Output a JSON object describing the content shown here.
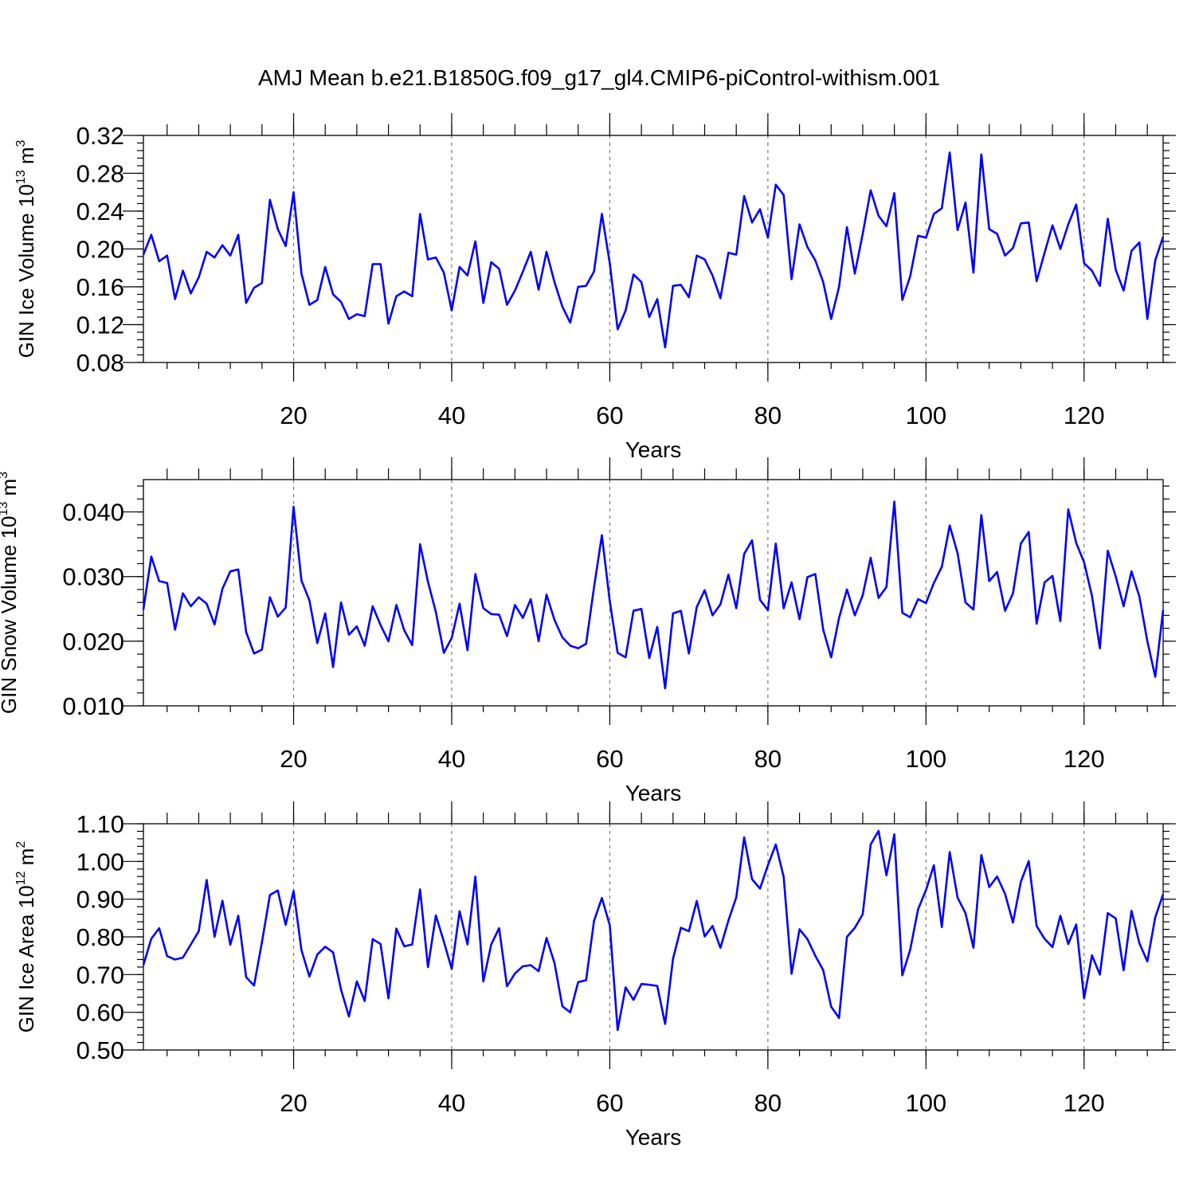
{
  "figure": {
    "title": "AMJ Mean b.e21.B1850G.f09_g17_gl4.CMIP6-piControl-withism.001",
    "line_color": "#0000ff"
  },
  "chart_data": [
    {
      "type": "line",
      "ylabel": "GIN Ice Volume 10",
      "ylabel_sup": "13",
      "ylabel_unit": "m",
      "ylabel_unit_sup": "3",
      "xlabel": "Years",
      "xlim": [
        1,
        130
      ],
      "ylim": [
        0.08,
        0.32
      ],
      "yticks": [
        0.08,
        0.12,
        0.16,
        0.2,
        0.24,
        0.28,
        0.32
      ],
      "ytick_labels": [
        "0.08",
        "0.12",
        "0.16",
        "0.20",
        "0.24",
        "0.28",
        "0.32"
      ],
      "xticks": [
        20,
        40,
        60,
        80,
        100,
        120
      ],
      "xtick_labels": [
        "20",
        "40",
        "60",
        "80",
        "100",
        "120"
      ],
      "x_start": 1,
      "values": [
        0.194,
        0.215,
        0.187,
        0.193,
        0.147,
        0.177,
        0.153,
        0.17,
        0.197,
        0.191,
        0.204,
        0.193,
        0.215,
        0.143,
        0.159,
        0.164,
        0.252,
        0.221,
        0.203,
        0.26,
        0.174,
        0.141,
        0.146,
        0.181,
        0.152,
        0.144,
        0.126,
        0.131,
        0.129,
        0.184,
        0.184,
        0.121,
        0.15,
        0.155,
        0.15,
        0.237,
        0.189,
        0.191,
        0.175,
        0.135,
        0.181,
        0.172,
        0.208,
        0.143,
        0.186,
        0.179,
        0.141,
        0.156,
        0.176,
        0.197,
        0.157,
        0.197,
        0.165,
        0.139,
        0.122,
        0.16,
        0.161,
        0.176,
        0.237,
        0.185,
        0.115,
        0.135,
        0.173,
        0.165,
        0.128,
        0.147,
        0.096,
        0.161,
        0.162,
        0.149,
        0.193,
        0.189,
        0.172,
        0.148,
        0.196,
        0.194,
        0.256,
        0.228,
        0.242,
        0.212,
        0.268,
        0.257,
        0.168,
        0.226,
        0.202,
        0.188,
        0.165,
        0.126,
        0.16,
        0.223,
        0.174,
        0.216,
        0.262,
        0.235,
        0.224,
        0.259,
        0.146,
        0.171,
        0.214,
        0.212,
        0.237,
        0.243,
        0.302,
        0.22,
        0.249,
        0.175,
        0.3,
        0.221,
        0.216,
        0.193,
        0.201,
        0.227,
        0.228,
        0.166,
        0.196,
        0.225,
        0.2,
        0.226,
        0.247,
        0.185,
        0.177,
        0.161,
        0.232,
        0.178,
        0.156,
        0.198,
        0.207,
        0.126,
        0.188,
        0.213
      ]
    },
    {
      "type": "line",
      "ylabel": "GIN Snow Volume 10",
      "ylabel_sup": "13",
      "ylabel_unit": "m",
      "ylabel_unit_sup": "3",
      "xlabel": "Years",
      "xlim": [
        1,
        130
      ],
      "ylim": [
        0.01,
        0.045
      ],
      "yticks": [
        0.01,
        0.02,
        0.03,
        0.04
      ],
      "ytick_labels": [
        "0.010",
        "0.020",
        "0.030",
        "0.040"
      ],
      "xticks": [
        20,
        40,
        60,
        80,
        100,
        120
      ],
      "xtick_labels": [
        "20",
        "40",
        "60",
        "80",
        "100",
        "120"
      ],
      "x_start": 1,
      "values": [
        0.0249,
        0.0331,
        0.0293,
        0.029,
        0.0218,
        0.0274,
        0.0254,
        0.0268,
        0.0258,
        0.0226,
        0.0281,
        0.0308,
        0.0311,
        0.0214,
        0.0181,
        0.0187,
        0.0268,
        0.0238,
        0.0252,
        0.0408,
        0.0294,
        0.0263,
        0.0197,
        0.0243,
        0.016,
        0.026,
        0.021,
        0.0223,
        0.0193,
        0.0254,
        0.0225,
        0.02,
        0.0256,
        0.0217,
        0.0194,
        0.035,
        0.0292,
        0.0245,
        0.0182,
        0.0205,
        0.0258,
        0.0186,
        0.0304,
        0.0251,
        0.0242,
        0.0241,
        0.0208,
        0.0256,
        0.0236,
        0.0265,
        0.02,
        0.0272,
        0.0233,
        0.0206,
        0.0193,
        0.0189,
        0.0196,
        0.0283,
        0.0364,
        0.0262,
        0.0182,
        0.0175,
        0.0247,
        0.025,
        0.0174,
        0.0222,
        0.0127,
        0.0243,
        0.0247,
        0.0181,
        0.0253,
        0.0279,
        0.024,
        0.0257,
        0.0303,
        0.0251,
        0.0335,
        0.0356,
        0.0264,
        0.0248,
        0.0351,
        0.0251,
        0.0291,
        0.0234,
        0.0299,
        0.0304,
        0.0218,
        0.0175,
        0.0236,
        0.028,
        0.024,
        0.0271,
        0.0329,
        0.0267,
        0.0284,
        0.0416,
        0.0244,
        0.0237,
        0.0265,
        0.0259,
        0.029,
        0.0315,
        0.0379,
        0.0336,
        0.026,
        0.0249,
        0.0395,
        0.0293,
        0.0307,
        0.0247,
        0.0274,
        0.0351,
        0.0369,
        0.0227,
        0.0291,
        0.0301,
        0.0231,
        0.0404,
        0.0352,
        0.0322,
        0.027,
        0.0189,
        0.034,
        0.03,
        0.0254,
        0.0308,
        0.0269,
        0.02,
        0.0145,
        0.0248
      ]
    },
    {
      "type": "line",
      "ylabel": "GIN Ice Area 10",
      "ylabel_sup": "12",
      "ylabel_unit": "m",
      "ylabel_unit_sup": "2",
      "xlabel": "Years",
      "xlim": [
        1,
        130
      ],
      "ylim": [
        0.5,
        1.1
      ],
      "yticks": [
        0.5,
        0.6,
        0.7,
        0.8,
        0.9,
        1.0,
        1.1
      ],
      "ytick_labels": [
        "0.50",
        "0.60",
        "0.70",
        "0.80",
        "0.90",
        "1.00",
        "1.10"
      ],
      "xticks": [
        20,
        40,
        60,
        80,
        100,
        120
      ],
      "xtick_labels": [
        "20",
        "40",
        "60",
        "80",
        "100",
        "120"
      ],
      "x_start": 1,
      "values": [
        0.725,
        0.795,
        0.823,
        0.749,
        0.74,
        0.745,
        0.78,
        0.815,
        0.951,
        0.8,
        0.896,
        0.779,
        0.856,
        0.693,
        0.671,
        0.786,
        0.911,
        0.923,
        0.832,
        0.922,
        0.765,
        0.695,
        0.753,
        0.774,
        0.759,
        0.66,
        0.589,
        0.682,
        0.63,
        0.794,
        0.781,
        0.637,
        0.822,
        0.775,
        0.78,
        0.926,
        0.72,
        0.857,
        0.788,
        0.715,
        0.868,
        0.78,
        0.96,
        0.682,
        0.78,
        0.823,
        0.669,
        0.703,
        0.722,
        0.725,
        0.709,
        0.797,
        0.731,
        0.616,
        0.6,
        0.68,
        0.685,
        0.842,
        0.903,
        0.831,
        0.553,
        0.666,
        0.633,
        0.675,
        0.673,
        0.67,
        0.569,
        0.742,
        0.824,
        0.815,
        0.895,
        0.801,
        0.829,
        0.771,
        0.843,
        0.905,
        1.064,
        0.953,
        0.928,
        0.99,
        1.045,
        0.959,
        0.702,
        0.82,
        0.794,
        0.75,
        0.712,
        0.615,
        0.585,
        0.8,
        0.824,
        0.86,
        1.045,
        1.081,
        0.963,
        1.072,
        0.698,
        0.766,
        0.873,
        0.924,
        0.99,
        0.826,
        1.025,
        0.904,
        0.863,
        0.771,
        1.017,
        0.932,
        0.96,
        0.914,
        0.838,
        0.946,
        1.001,
        0.829,
        0.795,
        0.773,
        0.856,
        0.781,
        0.833,
        0.637,
        0.751,
        0.7,
        0.863,
        0.849,
        0.711,
        0.869,
        0.783,
        0.735,
        0.852,
        0.913
      ]
    }
  ]
}
